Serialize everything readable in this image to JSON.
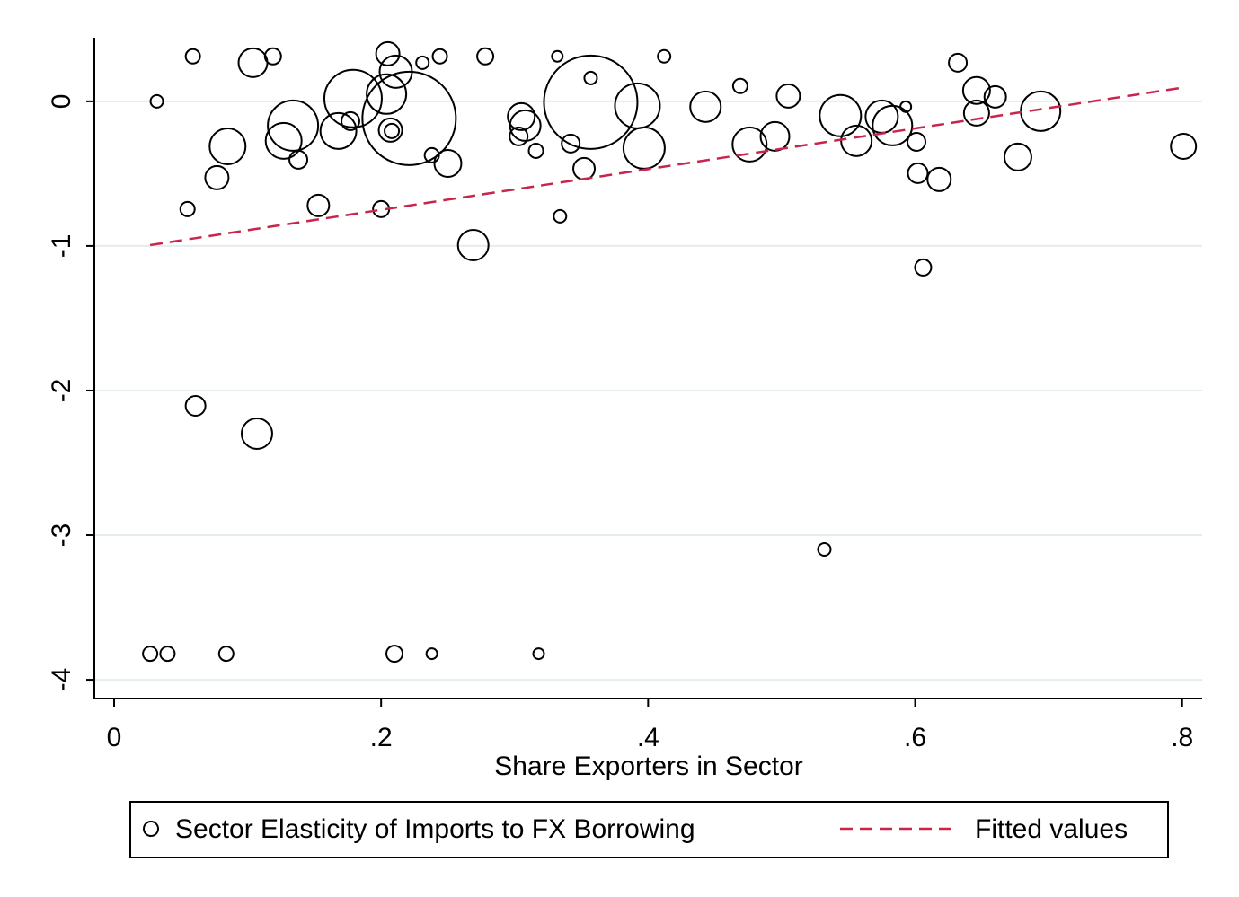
{
  "chart_data": {
    "type": "scatter",
    "xlabel": "Share Exporters in Sector",
    "xlim": [
      -0.0148,
      0.815
    ],
    "ylim": [
      -4.13,
      0.44
    ],
    "xticks": [
      0,
      {
        "value": 0.2,
        "label": ".2"
      },
      {
        "value": 0.4,
        "label": ".4"
      },
      {
        "value": 0.6,
        "label": ".6"
      },
      {
        "value": 0.8,
        "label": ".8"
      }
    ],
    "yticks": [
      0,
      -1,
      -2,
      -3,
      -4
    ],
    "grid": true,
    "legend": "bottom",
    "series": [
      {
        "name": "Sector Elasticity of Imports to FX Borrowing",
        "type": "scatter",
        "color": "#000000",
        "x": [
          0.059,
          0.032,
          0.104,
          0.119,
          0.205,
          0.211,
          0.231,
          0.244,
          0.278,
          0.332,
          0.357,
          0.412,
          0.632,
          0.469,
          0.505,
          0.646,
          0.66,
          0.179,
          0.204,
          0.221,
          0.134,
          0.127,
          0.085,
          0.138,
          0.168,
          0.177,
          0.207,
          0.208,
          0.077,
          0.055,
          0.153,
          0.2,
          0.238,
          0.25,
          0.305,
          0.308,
          0.303,
          0.316,
          0.342,
          0.334,
          0.352,
          0.357,
          0.392,
          0.397,
          0.443,
          0.476,
          0.495,
          0.544,
          0.556,
          0.575,
          0.583,
          0.593,
          0.601,
          0.602,
          0.618,
          0.646,
          0.677,
          0.694,
          0.801,
          0.269,
          0.606,
          0.061,
          0.107,
          0.532,
          0.027,
          0.04,
          0.084,
          0.21,
          0.238,
          0.318
        ],
        "values": [
          0.311,
          0,
          0.267,
          0.311,
          0.329,
          0.205,
          0.267,
          0.311,
          0.311,
          0.311,
          0.161,
          0.311,
          0.267,
          0.106,
          0.037,
          0.075,
          0.031,
          0.019,
          0.05,
          -0.118,
          -0.168,
          -0.273,
          -0.311,
          -0.404,
          -0.205,
          -0.137,
          -0.199,
          -0.205,
          -0.528,
          -0.745,
          -0.72,
          -0.745,
          -0.373,
          -0.429,
          -0.106,
          -0.168,
          -0.242,
          -0.342,
          -0.292,
          -0.795,
          -0.466,
          -0.006,
          -0.031,
          -0.323,
          -0.037,
          -0.298,
          -0.242,
          -0.099,
          -0.273,
          -0.106,
          -0.168,
          -0.037,
          -0.28,
          -0.497,
          -0.54,
          -0.081,
          -0.385,
          -0.068,
          -0.311,
          -0.994,
          -1.149,
          -2.106,
          -2.298,
          -3.099,
          -3.82,
          -3.82,
          -3.82,
          -3.82,
          -3.82,
          -3.82
        ],
        "sizes": [
          64,
          49,
          256,
          81,
          169,
          324,
          49,
          64,
          81,
          36,
          49,
          49,
          100,
          64,
          169,
          225,
          144,
          1024,
          484,
          2704,
          784,
          400,
          400,
          100,
          400,
          100,
          169,
          64,
          169,
          64,
          144,
          81,
          64,
          225,
          225,
          289,
          100,
          64,
          100,
          49,
          144,
          2704,
          625,
          529,
          289,
          361,
          256,
          529,
          289,
          324,
          484,
          36,
          100,
          121,
          169,
          196,
          225,
          484,
          196,
          289,
          81,
          121,
          289,
          49,
          64,
          64,
          64,
          81,
          36,
          36
        ]
      },
      {
        "name": "Fitted values",
        "type": "line",
        "color": "#c8254c",
        "x": [
          0.027,
          0.801
        ],
        "values": [
          -0.994,
          0.096
        ]
      }
    ]
  }
}
